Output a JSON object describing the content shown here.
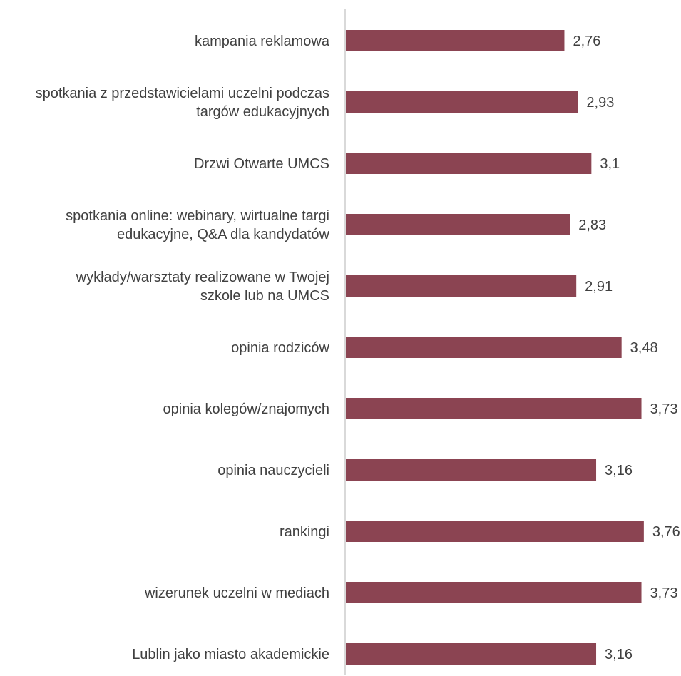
{
  "chart_data": {
    "type": "bar",
    "orientation": "horizontal",
    "title": "",
    "xlabel": "",
    "ylabel": "",
    "categories": [
      "kampania reklamowa",
      "spotkania z przedstawicielami uczelni podczas targów edukacyjnych",
      "Drzwi Otwarte UMCS",
      "spotkania online: webinary, wirtualne targi edukacyjne, Q&A dla kandydatów",
      "wykłady/warsztaty realizowane w Twojej szkole lub na UMCS",
      "opinia rodziców",
      "opinia kolegów/znajomych",
      "opinia nauczycieli",
      "rankingi",
      "wizerunek uczelni w mediach",
      "Lublin jako miasto akademickie"
    ],
    "category_lines": [
      [
        "kampania reklamowa"
      ],
      [
        "spotkania z przedstawicielami uczelni podczas",
        "targów edukacyjnych"
      ],
      [
        "Drzwi Otwarte UMCS"
      ],
      [
        "spotkania online: webinary, wirtualne targi",
        "edukacyjne, Q&A dla kandydatów"
      ],
      [
        "wykłady/warsztaty realizowane w Twojej",
        "szkole lub na UMCS"
      ],
      [
        "opinia rodziców"
      ],
      [
        "opinia kolegów/znajomych"
      ],
      [
        "opinia nauczycieli"
      ],
      [
        "rankingi"
      ],
      [
        "wizerunek uczelni w mediach"
      ],
      [
        "Lublin jako miasto akademickie"
      ]
    ],
    "values": [
      2.76,
      2.93,
      3.1,
      2.83,
      2.91,
      3.48,
      3.73,
      3.16,
      3.76,
      3.73,
      3.16
    ],
    "value_labels": [
      "2,76",
      "2,93",
      "3,1",
      "2,83",
      "2,91",
      "3,48",
      "3,73",
      "3,16",
      "3,76",
      "3,73",
      "3,16"
    ],
    "xlim": [
      0,
      3.76
    ],
    "grid": false,
    "legend": "none",
    "bar_color": "#8b4452",
    "axis_color": "#d9d9d9"
  }
}
